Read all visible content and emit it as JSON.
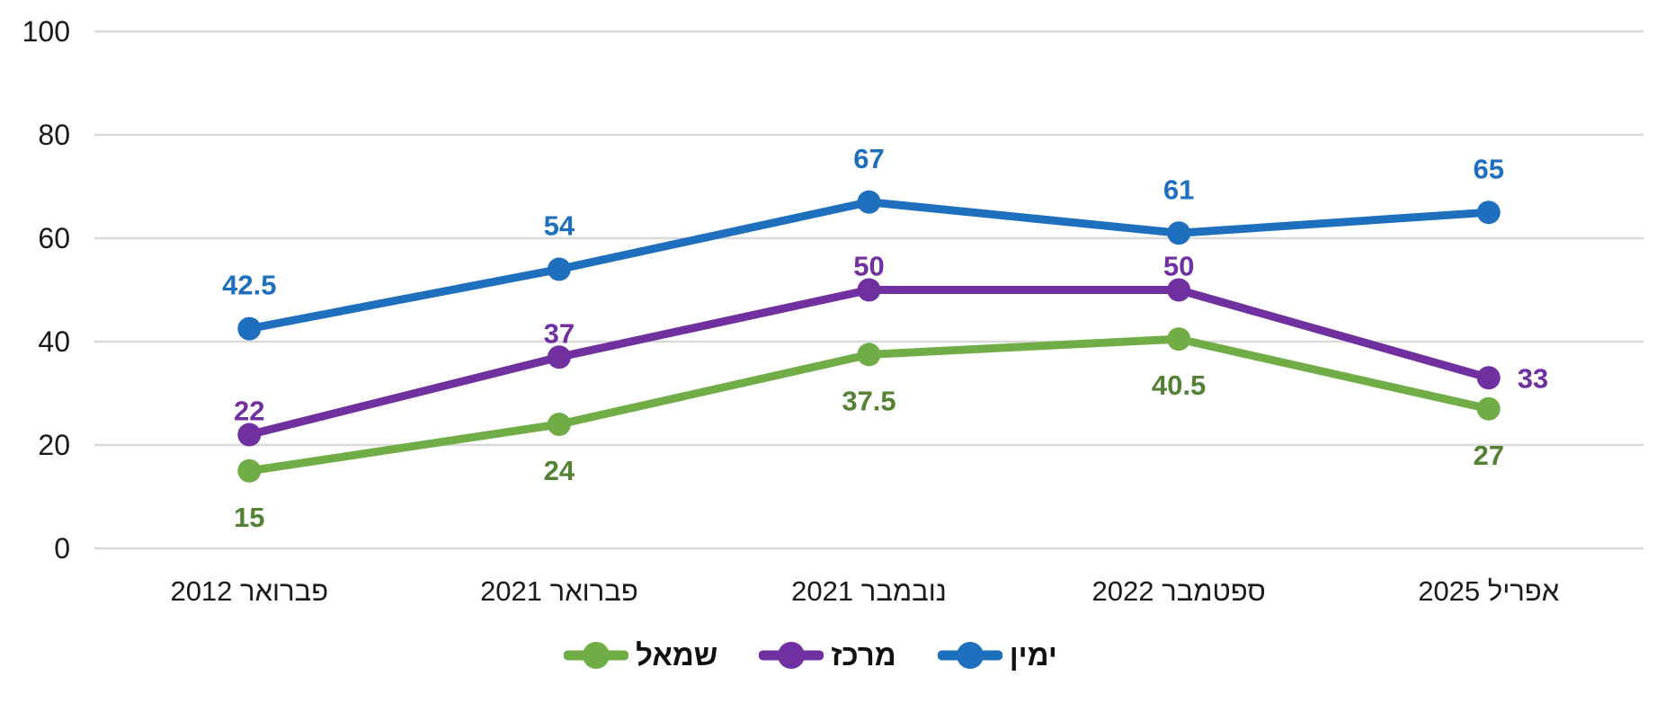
{
  "chart_data": {
    "type": "line",
    "categories": [
      "פברואר 2012",
      "פברואר 2021",
      "נובמבר 2021",
      "ספטמבר 2022",
      "אפריל 2025"
    ],
    "series": [
      {
        "key": "left",
        "name": "שמאל",
        "color": "#70AD47",
        "label_color": "#548235",
        "values": [
          15,
          24,
          37.5,
          40.5,
          27
        ],
        "label_positions": [
          "below",
          "below",
          "below",
          "below",
          "below"
        ]
      },
      {
        "key": "center",
        "name": "מרכז",
        "color": "#7030A0",
        "label_color": "#7030A0",
        "values": [
          22,
          37,
          50,
          50,
          33
        ],
        "label_positions": [
          "above-tight",
          "above-tight",
          "above-tight",
          "above-tight",
          "right"
        ]
      },
      {
        "key": "right",
        "name": "ימין",
        "color": "#1F6FBF",
        "label_color": "#1F6FBF",
        "values": [
          42.5,
          54,
          67,
          61,
          65
        ],
        "label_positions": [
          "above",
          "above",
          "above",
          "above",
          "above"
        ]
      }
    ],
    "y_axis": {
      "min": 0,
      "max": 100,
      "step": 20,
      "ticks": [
        0,
        20,
        40,
        60,
        80,
        100
      ]
    },
    "x_axis": {
      "label": ""
    },
    "title": "",
    "grid": true,
    "legend_position": "bottom",
    "style": {
      "grid_color": "#D9D9D9",
      "axis_text_color": "#1a1a1a",
      "background": "#ffffff"
    }
  }
}
